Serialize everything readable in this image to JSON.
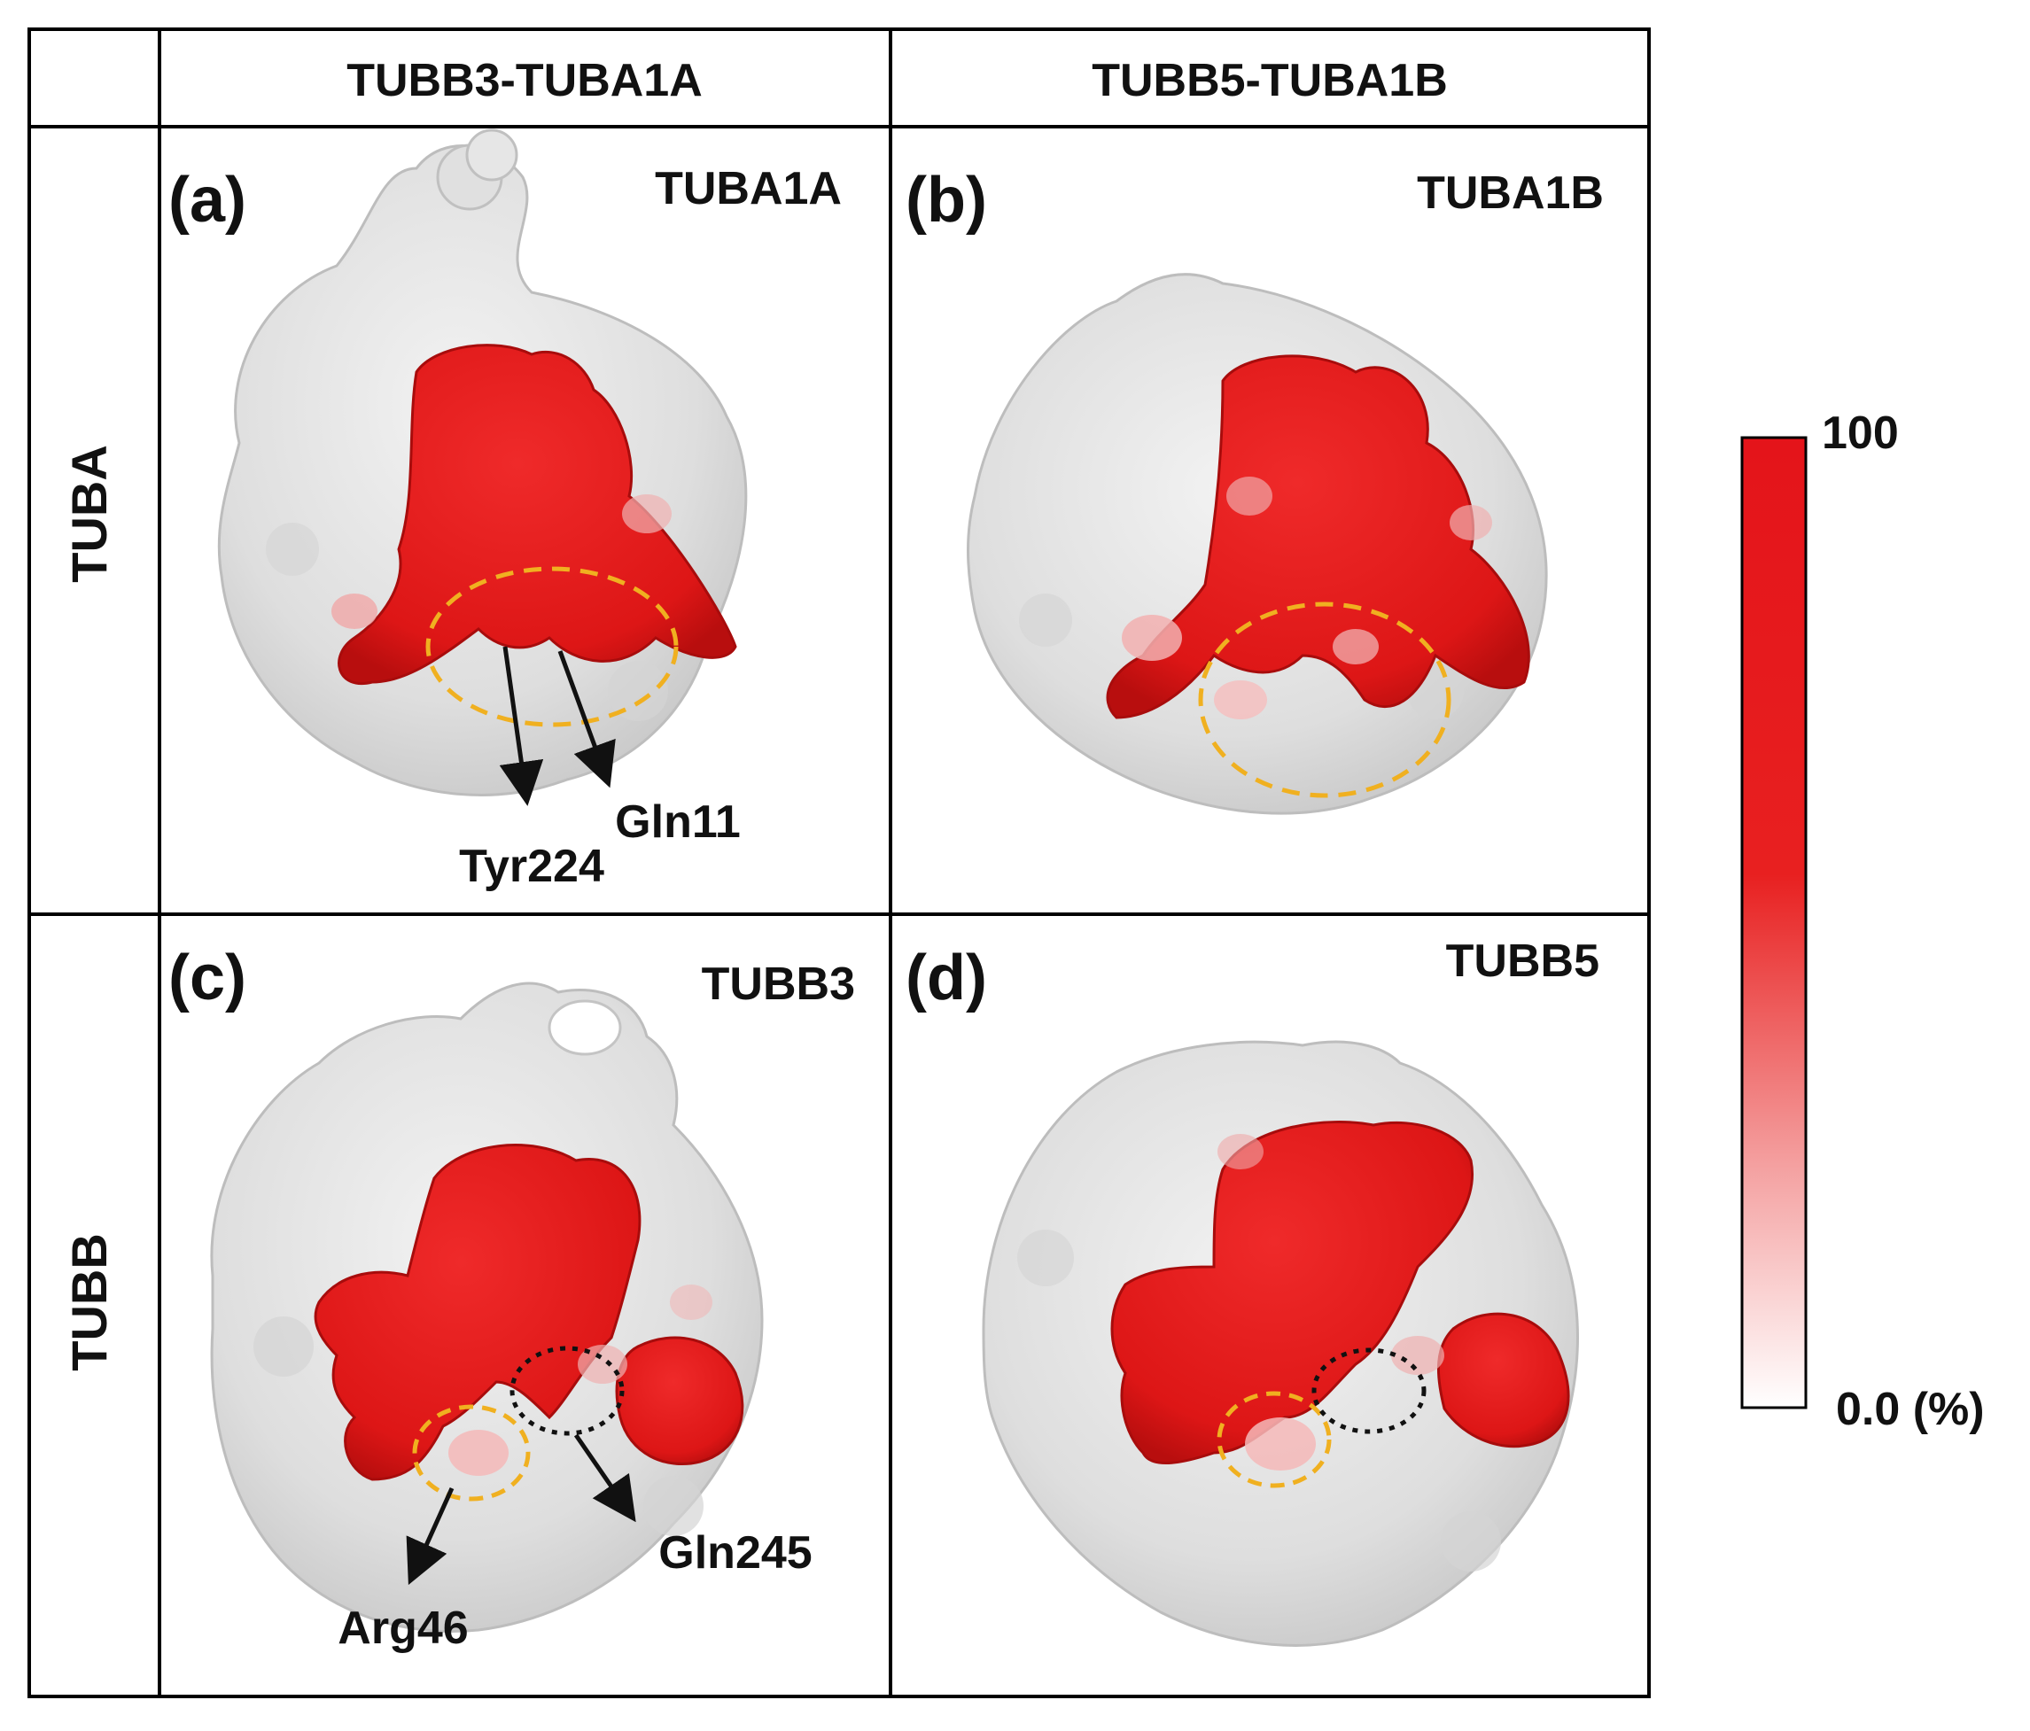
{
  "table": {
    "col_headers": [
      "TUBB3-TUBA1A",
      "TUBB5-TUBA1B"
    ],
    "row_headers": [
      "TUBA",
      "TUBB"
    ]
  },
  "panels": [
    {
      "letter": "(a)",
      "title": "TUBA1A",
      "residues": [
        "Tyr224",
        "Gln11"
      ]
    },
    {
      "letter": "(b)",
      "title": "TUBA1B",
      "residues": []
    },
    {
      "letter": "(c)",
      "title": "TUBB3",
      "residues": [
        "Arg46",
        "Gln245"
      ]
    },
    {
      "letter": "(d)",
      "title": "TUBB5",
      "residues": []
    }
  ],
  "colorbar": {
    "max_label": "100",
    "min_label": "0.0 (%)",
    "max_color": "#e4141a",
    "min_color": "#ffffff"
  },
  "colors": {
    "surface": "#e2e2e2",
    "surface_shadow": "#c4c4c4",
    "contact": "#e01a1a",
    "contact_light": "#f0a0a0",
    "highlight_ring": "#f0b020",
    "second_ring": "#111111",
    "grid": "#000000"
  }
}
